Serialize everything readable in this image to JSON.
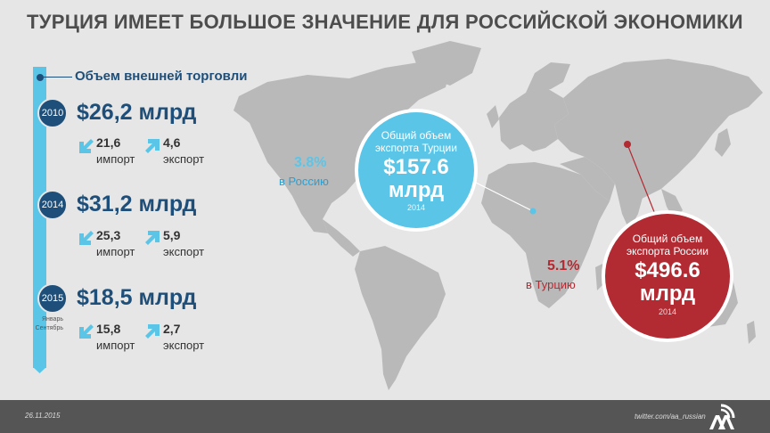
{
  "title": "ТУРЦИЯ ИМЕЕТ БОЛЬШОЕ ЗНАЧЕНИЕ ДЛЯ РОССИЙСКОЙ ЭКОНОМИКИ",
  "timeline": {
    "heading": "Объем внешней торговли",
    "entries": [
      {
        "year": "2010",
        "amount": "$26,2 млрд",
        "import_value": "21,6",
        "import_label": "импорт",
        "export_value": "4,6",
        "export_label": "экспорт"
      },
      {
        "year": "2014",
        "amount": "$31,2 млрд",
        "import_value": "25,3",
        "import_label": "импорт",
        "export_value": "5,9",
        "export_label": "экспорт"
      },
      {
        "year": "2015",
        "amount": "$18,5 млрд",
        "import_value": "15,8",
        "import_label": "импорт",
        "export_value": "2,7",
        "export_label": "экспорт",
        "note_line1": "Январь",
        "note_line2": "Сентябрь"
      }
    ]
  },
  "turkey": {
    "share_pct": "3.8%",
    "share_label": "в Россию",
    "circle_line1": "Общий объем",
    "circle_line2": "экспорта Турции",
    "circle_value": "$157.6",
    "circle_unit": "млрд",
    "circle_year": "2014",
    "color": "#5bc5e8"
  },
  "russia": {
    "share_pct": "5.1%",
    "share_label": "в Турцию",
    "circle_line1": "Общий объем",
    "circle_line2": "экспорта России",
    "circle_value": "$496.6",
    "circle_unit": "млрд",
    "circle_year": "2014",
    "color": "#b22a32"
  },
  "footer": {
    "date": "26.11.2015",
    "twitter": "twitter.com/aa_russian"
  },
  "icons": {
    "import": "arrow-down-left-icon",
    "export": "arrow-up-right-icon",
    "logo": "aa-logo-icon"
  }
}
